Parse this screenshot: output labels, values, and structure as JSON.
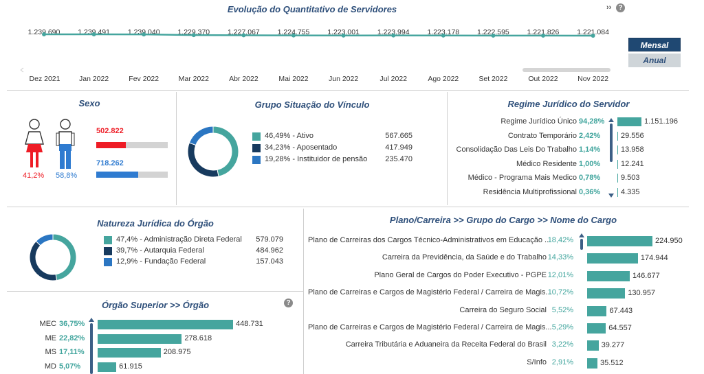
{
  "evolucao": {
    "title": "Evolução do Quantitativo de Servidores",
    "values": [
      1239690,
      1239491,
      1239040,
      1229370,
      1227067,
      1224755,
      1223001,
      1223994,
      1223178,
      1222595,
      1221826,
      1221084
    ],
    "value_labels": [
      "1.239.690",
      "1.239.491",
      "1.239.040",
      "1.229.370",
      "1.227.067",
      "1.224.755",
      "1.223.001",
      "1.223.994",
      "1.223.178",
      "1.222.595",
      "1.221.826",
      "1.221.084"
    ],
    "months": [
      "Dez 2021",
      "Jan 2022",
      "Fev 2022",
      "Mar 2022",
      "Abr 2022",
      "Mai 2022",
      "Jun 2022",
      "Jul 2022",
      "Ago 2022",
      "Set 2022",
      "Out 2022",
      "Nov 2022"
    ],
    "btn_mensal": "Mensal",
    "btn_anual": "Anual",
    "nav_icon": "double-chevron-right-icon",
    "help_label": "?",
    "line_color": "#45a59e"
  },
  "sexo": {
    "title": "Sexo",
    "female_value": "502.822",
    "female_pct": "41,2%",
    "female_fraction": 0.412,
    "male_value": "718.262",
    "male_pct": "58,8%",
    "male_fraction": 0.588,
    "female_color": "#ee1c25",
    "male_color": "#2f7bd0"
  },
  "vinculo": {
    "title": "Grupo Situação do Vínculo",
    "items": [
      {
        "label": "46,49% - Ativo",
        "value": "567.665",
        "color": "#45a59e",
        "fraction": 0.4649
      },
      {
        "label": "34,23% - Aposentado",
        "value": "417.949",
        "color": "#173a5e",
        "fraction": 0.3423
      },
      {
        "label": "19,28% - Instituidor de pensão",
        "value": "235.470",
        "color": "#2b76c2",
        "fraction": 0.1928
      }
    ]
  },
  "regime": {
    "title": "Regime Jurídico do Servidor",
    "rows": [
      {
        "name": "Regime Jurídico Único",
        "pct": "94,28%",
        "value": "1.151.196",
        "n": 1151196
      },
      {
        "name": "Contrato Temporário",
        "pct": "2,42%",
        "value": "29.556",
        "n": 29556
      },
      {
        "name": "Consolidação Das Leis Do Trabalho",
        "pct": "1,14%",
        "value": "13.958",
        "n": 13958
      },
      {
        "name": "Médico Residente",
        "pct": "1,00%",
        "value": "12.241",
        "n": 12241
      },
      {
        "name": "Médico - Programa Mais Medico",
        "pct": "0,78%",
        "value": "9.503",
        "n": 9503
      },
      {
        "name": "Residência Multiprofissional",
        "pct": "0,36%",
        "value": "4.335",
        "n": 4335
      }
    ]
  },
  "natureza": {
    "title": "Natureza Jurídica do Órgão",
    "items": [
      {
        "label": "47,4% - Administração Direta Federal",
        "value": "579.079",
        "color": "#45a59e",
        "fraction": 0.474
      },
      {
        "label": "39,7% - Autarquia Federal",
        "value": "484.962",
        "color": "#173a5e",
        "fraction": 0.397
      },
      {
        "label": "12,9% - Fundação Federal",
        "value": "157.043",
        "color": "#2b76c2",
        "fraction": 0.129
      }
    ]
  },
  "orgao": {
    "title": "Órgão Superior >> Órgão",
    "help_label": "?",
    "rows": [
      {
        "name": "MEC",
        "pct": "36,75%",
        "value": "448.731",
        "n": 448731
      },
      {
        "name": "ME",
        "pct": "22,82%",
        "value": "278.618",
        "n": 278618
      },
      {
        "name": "MS",
        "pct": "17,11%",
        "value": "208.975",
        "n": 208975
      },
      {
        "name": "MD",
        "pct": "5,07%",
        "value": "61.915",
        "n": 61915
      }
    ]
  },
  "plano": {
    "title": "Plano/Carreira >> Grupo do Cargo >> Nome do Cargo",
    "rows": [
      {
        "name": "Plano de Carreiras dos Cargos Técnico-Administrativos em Educação ...",
        "pct": "18,42%",
        "value": "224.950",
        "n": 224950
      },
      {
        "name": "Carreira da Previdência, da Saúde e do Trabalho",
        "pct": "14,33%",
        "value": "174.944",
        "n": 174944
      },
      {
        "name": "Plano Geral de Cargos do Poder Executivo - PGPE",
        "pct": "12,01%",
        "value": "146.677",
        "n": 146677
      },
      {
        "name": "Plano de Carreiras e Cargos de Magistério Federal / Carreira de Magis...",
        "pct": "10,72%",
        "value": "130.957",
        "n": 130957
      },
      {
        "name": "Carreira do Seguro Social",
        "pct": "5,52%",
        "value": "67.443",
        "n": 67443
      },
      {
        "name": "Plano de Carreiras e Cargos de Magistério Federal / Carreira de Magis...",
        "pct": "5,29%",
        "value": "64.557",
        "n": 64557
      },
      {
        "name": "Carreira Tributária e Aduaneira da Receita Federal do Brasil",
        "pct": "3,22%",
        "value": "39.277",
        "n": 39277
      },
      {
        "name": "S/Info",
        "pct": "2,91%",
        "value": "35.512",
        "n": 35512
      }
    ]
  }
}
